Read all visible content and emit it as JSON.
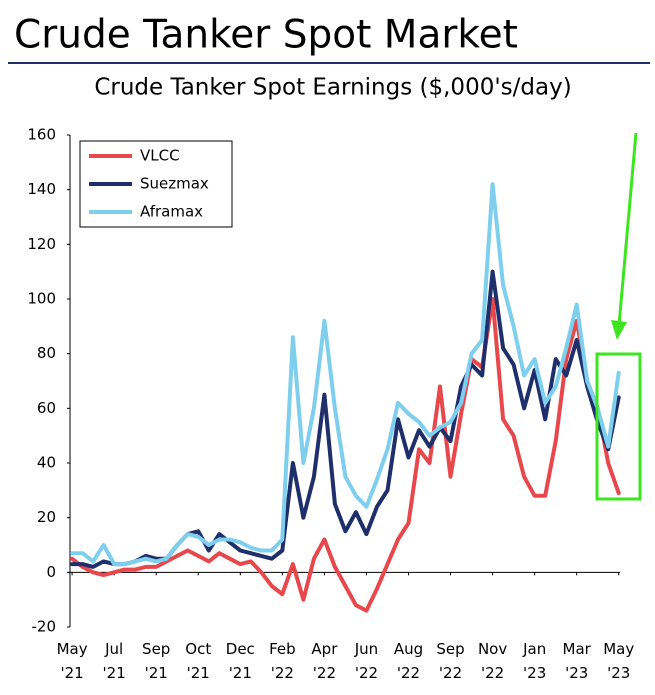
{
  "chart_data": {
    "type": "line",
    "title": "Crude Tanker Spot Market",
    "subtitle": "Crude Tanker Spot Earnings ($,000's/day)",
    "x": [
      0,
      2,
      4,
      6,
      8,
      10,
      12,
      14,
      16,
      18,
      20,
      22,
      24,
      26,
      28,
      30,
      32,
      34,
      36,
      38,
      40,
      42,
      44,
      46,
      48,
      50,
      52,
      54,
      56,
      58,
      60,
      62,
      64,
      66,
      68,
      70,
      72,
      74,
      76,
      78,
      80,
      82,
      84,
      86,
      88,
      90,
      92,
      94,
      96,
      98,
      100,
      102,
      104
    ],
    "series": [
      {
        "name": "VLCC",
        "color": "#e8484b",
        "values": [
          5,
          2,
          0,
          -1,
          0,
          1,
          1,
          2,
          2,
          4,
          6,
          8,
          6,
          4,
          7,
          5,
          3,
          4,
          0,
          -5,
          -8,
          3,
          -10,
          5,
          12,
          2,
          -5,
          -12,
          -14,
          -6,
          3,
          12,
          18,
          45,
          40,
          68,
          35,
          58,
          78,
          75,
          100,
          56,
          50,
          35,
          28,
          28,
          48,
          78,
          92,
          70,
          60,
          40,
          29
        ]
      },
      {
        "name": "Suezmax",
        "color": "#1f2f6b",
        "values": [
          3,
          3,
          2,
          4,
          3,
          3,
          4,
          6,
          5,
          5,
          10,
          14,
          15,
          8,
          14,
          11,
          8,
          7,
          6,
          5,
          8,
          40,
          20,
          35,
          65,
          25,
          15,
          22,
          14,
          24,
          30,
          56,
          42,
          52,
          46,
          53,
          48,
          68,
          76,
          72,
          110,
          82,
          76,
          60,
          74,
          56,
          78,
          72,
          85,
          68,
          55,
          45,
          64
        ]
      },
      {
        "name": "Aframax",
        "color": "#7ecfee",
        "values": [
          7,
          7,
          4,
          10,
          3,
          3,
          4,
          5,
          4,
          5,
          10,
          14,
          13,
          10,
          12,
          12,
          11,
          9,
          8,
          8,
          12,
          86,
          40,
          60,
          92,
          60,
          35,
          28,
          24,
          34,
          45,
          62,
          58,
          55,
          50,
          53,
          55,
          62,
          80,
          85,
          142,
          105,
          90,
          72,
          78,
          62,
          68,
          82,
          98,
          70,
          60,
          46,
          73
        ]
      }
    ],
    "xlim": [
      -0.4,
      105
    ],
    "xticks": [
      {
        "value": 0,
        "label": "May\n'21"
      },
      {
        "value": 8,
        "label": "Jul\n'21"
      },
      {
        "value": 16,
        "label": "Sep\n'21"
      },
      {
        "value": 24,
        "label": "Oct\n'21"
      },
      {
        "value": 32,
        "label": "Dec\n'21"
      },
      {
        "value": 40,
        "label": "Feb\n'22"
      },
      {
        "value": 48,
        "label": "Apr\n'22"
      },
      {
        "value": 56,
        "label": "Jun\n'22"
      },
      {
        "value": 64,
        "label": "Aug\n'22"
      },
      {
        "value": 72,
        "label": "Sep\n'22"
      },
      {
        "value": 80,
        "label": "Nov\n'22"
      },
      {
        "value": 88,
        "label": "Jan\n'23"
      },
      {
        "value": 96,
        "label": "Mar\n'23"
      },
      {
        "value": 104,
        "label": "May\n'23"
      }
    ],
    "ylim": [
      -20,
      160
    ],
    "yticks": [
      -20,
      0,
      20,
      40,
      60,
      80,
      100,
      120,
      140,
      160
    ],
    "grid": false,
    "legend": "top-left"
  }
}
